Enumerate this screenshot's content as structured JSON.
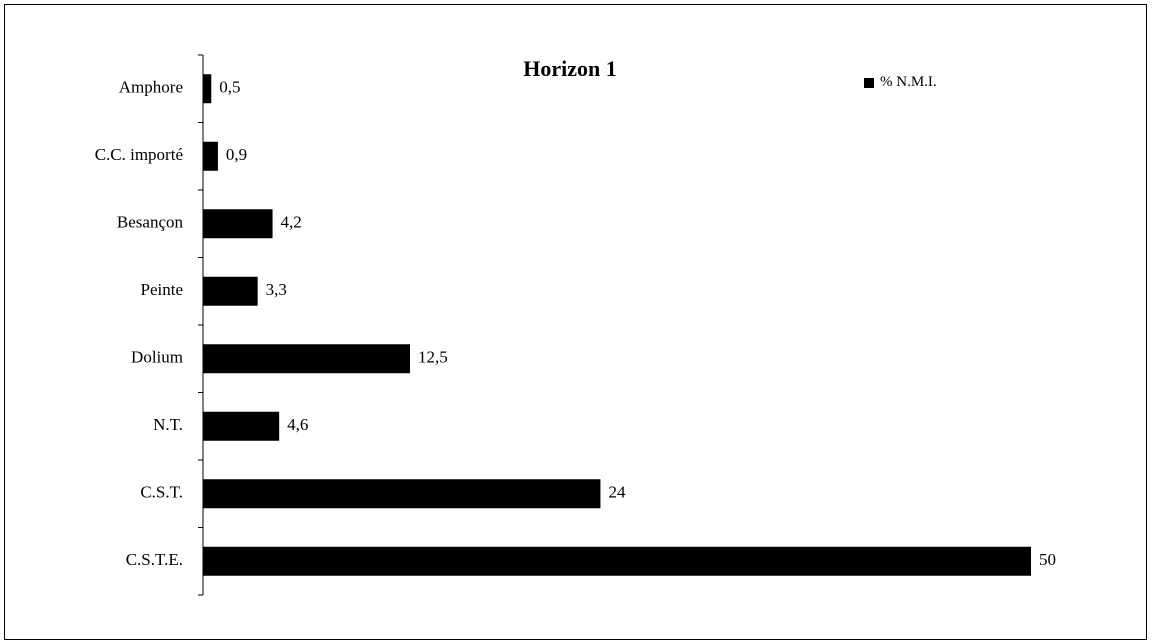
{
  "chart_data": {
    "type": "bar",
    "orientation": "horizontal",
    "title": "Horizon 1",
    "categories": [
      "Amphore",
      "C.C. importé",
      "Besançon",
      "Peinte",
      "Dolium",
      "N.T.",
      "C.S.T.",
      "C.S.T.E."
    ],
    "series": [
      {
        "name": "% N.M.I.",
        "values": [
          0.5,
          0.9,
          4.2,
          3.3,
          12.5,
          4.6,
          24,
          50
        ],
        "data_labels": [
          "0,5",
          "0,9",
          "4,2",
          "3,3",
          "12,5",
          "4,6",
          "24",
          "50"
        ]
      }
    ],
    "xlim": [
      0,
      50
    ],
    "grid": false,
    "legend_position": "top-right",
    "bar_color": "#000000"
  }
}
